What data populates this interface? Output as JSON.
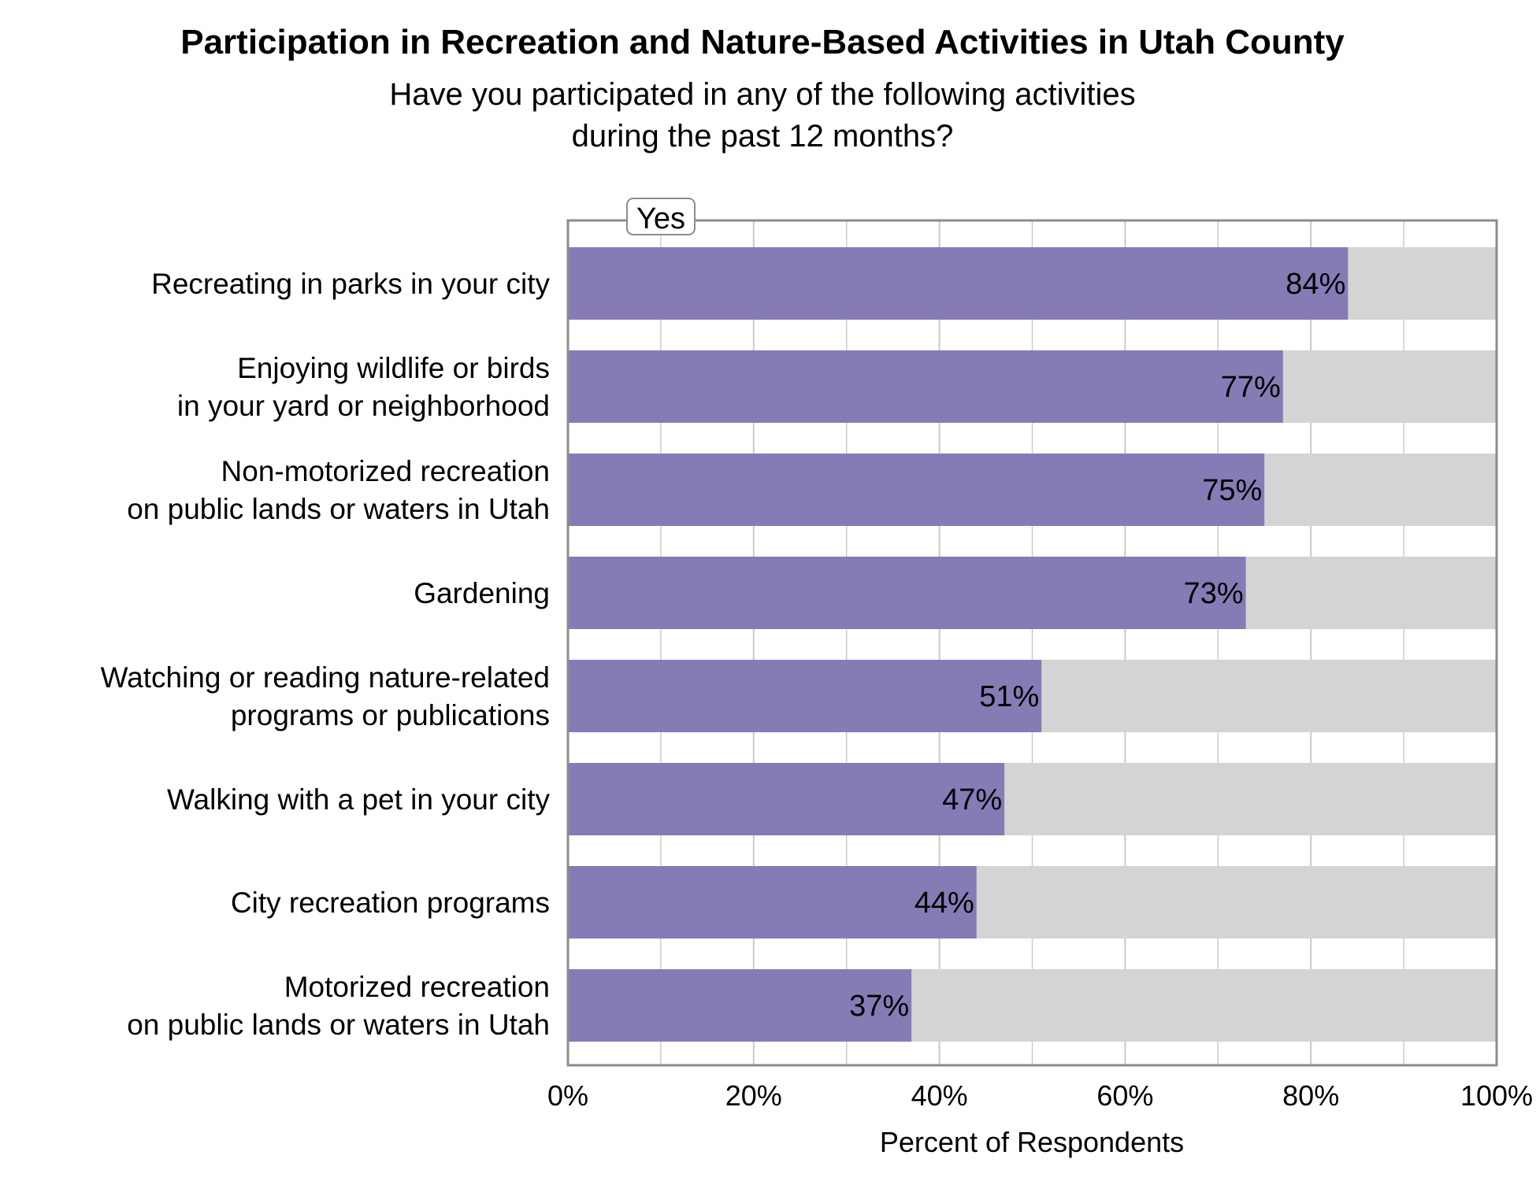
{
  "colors": {
    "yes_bar": "#877bb5",
    "remainder_bar": "#d4d4d4",
    "gridline": "#c8c8c8",
    "axis": "#8c8c8c"
  },
  "chart_data": {
    "type": "bar",
    "orientation": "horizontal",
    "stacked_to_100": true,
    "title": "Participation in Recreation and Nature-Based Activities in Utah County",
    "subtitle_lines": [
      "Have you participated in any of the following activities",
      "during the past 12 months?"
    ],
    "xlabel": "Percent of Respondents",
    "xlim": [
      0,
      100
    ],
    "x_ticks": [
      0,
      20,
      40,
      60,
      80,
      100
    ],
    "x_tick_labels": [
      "0%",
      "20%",
      "40%",
      "60%",
      "80%",
      "100%"
    ],
    "minor_gridlines": true,
    "legend": {
      "entries": [
        "Yes"
      ],
      "placement": "top-left"
    },
    "categories": [
      [
        "Recreating in parks in your city"
      ],
      [
        "Enjoying wildlife or birds",
        "in your yard or neighborhood"
      ],
      [
        "Non-motorized recreation",
        "on public lands or waters in Utah"
      ],
      [
        "Gardening"
      ],
      [
        "Watching or reading nature-related",
        "programs or publications"
      ],
      [
        "Walking with a pet in your city"
      ],
      [
        "City recreation programs"
      ],
      [
        "Motorized recreation",
        "on public lands or waters in Utah"
      ]
    ],
    "series": [
      {
        "name": "Yes",
        "values": [
          84,
          77,
          75,
          73,
          51,
          47,
          44,
          37
        ],
        "labels": [
          "84%",
          "77%",
          "75%",
          "73%",
          "51%",
          "47%",
          "44%",
          "37%"
        ]
      }
    ]
  }
}
